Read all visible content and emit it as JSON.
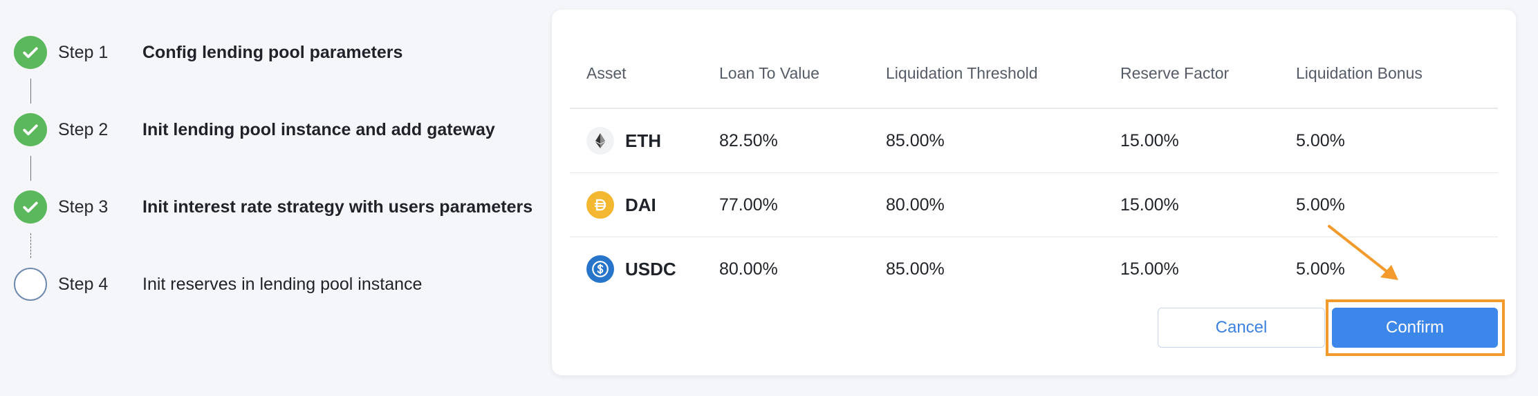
{
  "steps": [
    {
      "number": "Step 1",
      "label": "Config lending pool parameters",
      "status": "done"
    },
    {
      "number": "Step 2",
      "label": "Init lending pool instance and add gateway",
      "status": "done"
    },
    {
      "number": "Step 3",
      "label": "Init interest rate strategy with users parameters",
      "status": "done"
    },
    {
      "number": "Step 4",
      "label": "Init reserves in lending pool instance",
      "status": "pending"
    }
  ],
  "table": {
    "headers": [
      "Asset",
      "Loan To Value",
      "Liquidation Threshold",
      "Reserve Factor",
      "Liquidation Bonus"
    ],
    "rows": [
      {
        "asset": "ETH",
        "icon": "eth-icon",
        "ltv": "82.50%",
        "threshold": "85.00%",
        "reserve": "15.00%",
        "bonus": "5.00%"
      },
      {
        "asset": "DAI",
        "icon": "dai-icon",
        "ltv": "77.00%",
        "threshold": "80.00%",
        "reserve": "15.00%",
        "bonus": "5.00%"
      },
      {
        "asset": "USDC",
        "icon": "usdc-icon",
        "ltv": "80.00%",
        "threshold": "85.00%",
        "reserve": "15.00%",
        "bonus": "5.00%"
      }
    ]
  },
  "buttons": {
    "cancel": "Cancel",
    "confirm": "Confirm"
  },
  "colors": {
    "step_done": "#5cb85c",
    "step_pending_border": "#6f89b0",
    "primary": "#3d86ea",
    "annotation": "#f39a2d",
    "dai": "#f4b731",
    "usdc": "#2775ca"
  }
}
